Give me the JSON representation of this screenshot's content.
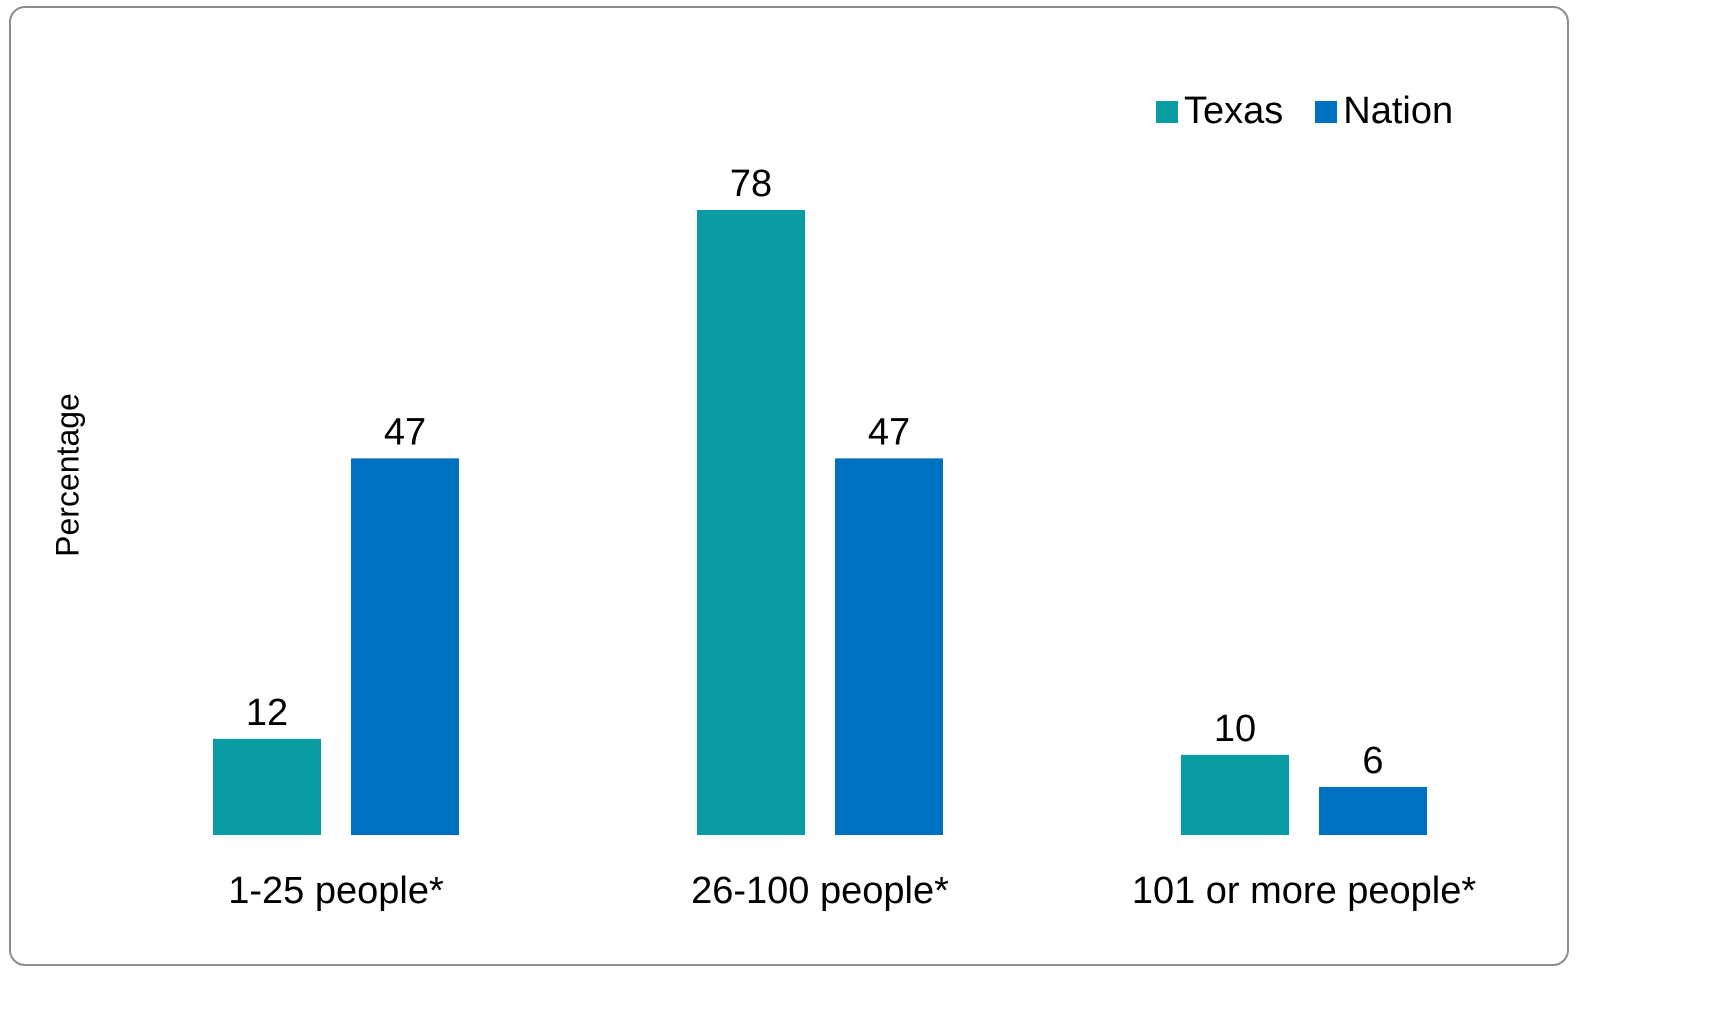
{
  "chart_data": {
    "type": "bar",
    "title": "",
    "xlabel": "",
    "ylabel": "Percentage",
    "ylim": [
      0,
      78
    ],
    "grid": false,
    "legend_position": "top-right",
    "categories": [
      "1-25 people*",
      "26-100 people*",
      "101 or more people*"
    ],
    "series": [
      {
        "name": "Texas",
        "color": "#0a9ca3",
        "values": [
          12,
          78,
          10
        ]
      },
      {
        "name": "Nation",
        "color": "#0070c0",
        "values": [
          47,
          47,
          6
        ]
      }
    ]
  }
}
